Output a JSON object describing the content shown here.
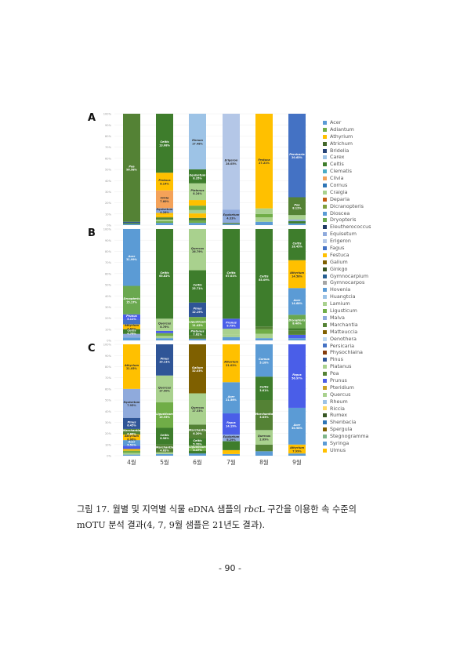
{
  "chart_data": {
    "type": "bar",
    "stacked": true,
    "percent_stacked": true,
    "x_categories": [
      "4월",
      "5월",
      "6월",
      "7월",
      "8월",
      "9월"
    ],
    "y_ticks": [
      "0%",
      "10%",
      "20%",
      "30%",
      "40%",
      "50%",
      "60%",
      "70%",
      "80%",
      "90%",
      "100%"
    ],
    "ylim": [
      0,
      100
    ],
    "legend_position": "right",
    "legend": [
      "Acer",
      "Adiantum",
      "Athyrium",
      "Atrichum",
      "Bridelia",
      "Carex",
      "Celtis",
      "Clematis",
      "Clivia",
      "Cornus",
      "Craigia",
      "Deparia",
      "Dicranopteris",
      "Dioscea",
      "Dryopteris",
      "Eleutherococcus",
      "Equisetum",
      "Erigeron",
      "Fagus",
      "Festuca",
      "Galium",
      "Ginkgo",
      "Gymnocarpium",
      "Gymnocarpos",
      "Hovenia",
      "Huangtcia",
      "Lamium",
      "Ligusticum",
      "Malva",
      "Marchantia",
      "Matteuccia",
      "Oenothera",
      "Persicaria",
      "Physochlaina",
      "Pinus",
      "Platanus",
      "Poa",
      "Prunus",
      "Pteridium",
      "Quercus",
      "Rheum",
      "Riccia",
      "Rumex",
      "Shenbacia",
      "Spergula",
      "Stegnogramma",
      "Syringa",
      "Ulmus"
    ],
    "palette": [
      "#5b9bd5",
      "#70ad47",
      "#ffc000",
      "#43682b",
      "#264478",
      "#9dc3e6",
      "#3e7d2c",
      "#4bacc6",
      "#f4a259",
      "#2e75b6",
      "#a9d18e",
      "#c55a11",
      "#7f9f3f",
      "#5a9bd5",
      "#6aa84f",
      "#1f3864",
      "#8faadc",
      "#b4c7e7",
      "#4472c4",
      "#ffc000",
      "#7f6000",
      "#375623",
      "#255e91",
      "#a5a5a5",
      "#5b9bd5",
      "#9dc3e6",
      "#a9d18e",
      "#70ad47",
      "#8ea9db",
      "#548235",
      "#806000",
      "#bdd7ee",
      "#4472c4",
      "#843c0c",
      "#2f5597",
      "#a9d18e",
      "#548235",
      "#4a5ee8",
      "#c9a227",
      "#a9d18e",
      "#9dc3e6",
      "#ffd966",
      "#375623",
      "#2e75b6",
      "#806000",
      "#7fb58a",
      "#5b9bd5",
      "#ffc000"
    ],
    "panels": [
      {
        "label": "A",
        "bars": [
          [
            {
              "genus": "Acer",
              "v": 1.0
            },
            {
              "genus": "Celtis",
              "v": 1.0
            },
            {
              "genus": "Pinus",
              "v": 1.0
            },
            {
              "genus": "Poa",
              "v": 97.0,
              "label": "Poa",
              "pct": "96.98%"
            }
          ],
          [
            {
              "genus": "Acer",
              "v": 2.0
            },
            {
              "genus": "Ligusticum",
              "v": 1.5
            },
            {
              "genus": "Quercus",
              "v": 1.5
            },
            {
              "genus": "Marchantia",
              "v": 2.0
            },
            {
              "genus": "Festuca",
              "v": 2.0
            },
            {
              "genus": "Athyrium",
              "v": 2.0
            },
            {
              "genus": "Equisetum",
              "v": 4.3,
              "label": "Equisetum",
              "pct": "4.28%"
            },
            {
              "genus": "Clivia",
              "v": 16.0,
              "label": "Clivia",
              "pct": "7.60%"
            },
            {
              "genus": "Festuca",
              "v": 16.0,
              "label": "Festuca",
              "pct": "8.14%"
            },
            {
              "genus": "Celtis",
              "v": 53.2,
              "label": "Celtis",
              "pct": "13.08%"
            }
          ],
          [
            {
              "genus": "Acer",
              "v": 2.0
            },
            {
              "genus": "Ligusticum",
              "v": 2.0
            },
            {
              "genus": "Marchantia",
              "v": 2.5
            },
            {
              "genus": "Festuca",
              "v": 4.0
            },
            {
              "genus": "Quercus",
              "v": 3.0
            },
            {
              "genus": "Ligusticum",
              "v": 4.0,
              "label": "Ligusticum",
              "pct": "3.30%"
            },
            {
              "genus": "Festuca",
              "v": 5.0
            },
            {
              "genus": "Platanus",
              "v": 15.0,
              "label": "Platanus",
              "pct": "8.24%"
            },
            {
              "genus": "Celtis",
              "v": 12.5,
              "label": "Equisetum",
              "pct": "8.35%"
            },
            {
              "genus": "Rheum",
              "v": 50.0,
              "label": "Rheum",
              "pct": "17.48%"
            }
          ],
          [
            {
              "genus": "Acer",
              "v": 1.0
            },
            {
              "genus": "Marchantia",
              "v": 1.0
            },
            {
              "genus": "Equisetum",
              "v": 12.0,
              "label": "Equisetum",
              "pct": "4.33%"
            },
            {
              "genus": "Erigeron",
              "v": 86.0,
              "label": "Erigeron",
              "pct": "28.05%"
            }
          ],
          [
            {
              "genus": "Acer",
              "v": 3.0
            },
            {
              "genus": "Quercus",
              "v": 4.0
            },
            {
              "genus": "Ligusticum",
              "v": 3.0
            },
            {
              "genus": "Quercus",
              "v": 5.0
            },
            {
              "genus": "Festuca",
              "v": 85.0,
              "label": "Festuca",
              "pct": "27.21%"
            }
          ],
          [
            {
              "genus": "Acer",
              "v": 1.5
            },
            {
              "genus": "Celtis",
              "v": 2.0
            },
            {
              "genus": "Equisetum",
              "v": 1.5
            },
            {
              "genus": "Platanus",
              "v": 4.0
            },
            {
              "genus": "Poa",
              "v": 16.0,
              "label": "Poa",
              "pct": "8.12%"
            },
            {
              "genus": "Persicaria",
              "v": 75.0,
              "label": "Persicaria",
              "pct": "20.65%"
            }
          ]
        ]
      },
      {
        "label": "B",
        "bars": [
          [
            {
              "genus": "Acer",
              "v": 2.5
            },
            {
              "genus": "Equisetum",
              "v": 3.0
            },
            {
              "genus": "Celtis",
              "v": 4.0,
              "label": "Celtis",
              "pct": "4.76%"
            },
            {
              "genus": "Athyrium",
              "v": 4.0,
              "label": "Athyrium",
              "pct": "4.82%"
            },
            {
              "genus": "Persicaria",
              "v": 4.0
            },
            {
              "genus": "Prunus",
              "v": 4.5,
              "label": "Prunus",
              "pct": "5.11%"
            },
            {
              "genus": "Dryopteris",
              "v": 24.0,
              "label": "Dryopteris",
              "pct": "15.17%"
            },
            {
              "genus": "Acer",
              "v": 48.0,
              "label": "Acer",
              "pct": "31.99%"
            }
          ],
          [
            {
              "genus": "Acer",
              "v": 2.0
            },
            {
              "genus": "Platanus",
              "v": 2.0
            },
            {
              "genus": "Ligusticum",
              "v": 2.5
            },
            {
              "genus": "Prunus",
              "v": 2.0
            },
            {
              "genus": "Quercus",
              "v": 11.0,
              "label": "Quercus",
              "pct": "8.76%"
            },
            {
              "genus": "Celtis",
              "v": 80.5,
              "label": "Celtis",
              "pct": "63.82%"
            }
          ],
          [
            {
              "genus": "Acer",
              "v": 1.5
            },
            {
              "genus": "Marchantia",
              "v": 3.0,
              "label": "Marchantia",
              "pct": "4.70%"
            },
            {
              "genus": "Celtis",
              "v": 5.5,
              "label": "Platanus",
              "pct": "7.62%"
            },
            {
              "genus": "Ligusticum",
              "v": 11.0,
              "label": "Ligusticum",
              "pct": "11.42%"
            },
            {
              "genus": "Pinus",
              "v": 13.0,
              "label": "Pinus",
              "pct": "12.19%"
            },
            {
              "genus": "Celtis",
              "v": 29.0,
              "label": "Celtis",
              "pct": "25.71%"
            },
            {
              "genus": "Quercus",
              "v": 37.0,
              "label": "Quercus",
              "pct": "26.79%"
            }
          ],
          [
            {
              "genus": "Acer",
              "v": 3.0
            },
            {
              "genus": "Quercus",
              "v": 2.0
            },
            {
              "genus": "Platanus",
              "v": 5.5
            },
            {
              "genus": "Prunus",
              "v": 9.0,
              "label": "Prunus",
              "pct": "9.79%"
            },
            {
              "genus": "Celtis",
              "v": 80.5,
              "label": "Celtis",
              "pct": "67.01%"
            }
          ],
          [
            {
              "genus": "Acer",
              "v": 2.0
            },
            {
              "genus": "Platanus",
              "v": 4.0,
              "label": "Platanus",
              "pct": "6.08%"
            },
            {
              "genus": "Ligusticum",
              "v": 4.0,
              "label": "Ligusticum",
              "pct": "3.98%"
            },
            {
              "genus": "Marchantia",
              "v": 2.5,
              "label": "Marchantia",
              "pct": "3.83%"
            },
            {
              "genus": "Celtis",
              "v": 87.5,
              "label": "Celtis",
              "pct": "85.09%"
            }
          ],
          [
            {
              "genus": "Acer",
              "v": 2.0
            },
            {
              "genus": "Prunus",
              "v": 3.0
            },
            {
              "genus": "Poa",
              "v": 4.0
            },
            {
              "genus": "Celtis",
              "v": 2.0
            },
            {
              "genus": "Dryopteris",
              "v": 12.0,
              "label": "Dryopteris",
              "pct": "8.46%"
            },
            {
              "genus": "Acer",
              "v": 24.0,
              "label": "Acer",
              "pct": "14.68%"
            },
            {
              "genus": "Athyrium",
              "v": 25.0,
              "label": "Athyrium",
              "pct": "14.58%"
            },
            {
              "genus": "Celtis",
              "v": 28.0,
              "label": "Celtis",
              "pct": "18.45%"
            }
          ]
        ]
      },
      {
        "label": "C",
        "bars": [
          [
            {
              "genus": "Acer",
              "v": 1.0
            },
            {
              "genus": "Platanus",
              "v": 1.5
            },
            {
              "genus": "Ligusticum",
              "v": 2.0
            },
            {
              "genus": "Festuca",
              "v": 1.5
            },
            {
              "genus": "Prunus",
              "v": 3.0
            },
            {
              "genus": "Acer",
              "v": 5.0,
              "label": "Acer",
              "pct": "5.51%"
            },
            {
              "genus": "Athyrium",
              "v": 5.0,
              "label": "Athyrium",
              "pct": "8.06%"
            },
            {
              "genus": "Marchantia",
              "v": 5.0,
              "label": "Marchantia",
              "pct": "6.66%"
            },
            {
              "genus": "Pinus",
              "v": 10.0,
              "label": "Pinus",
              "pct": "6.45%"
            },
            {
              "genus": "Equisetum",
              "v": 26.0,
              "label": "Equisetum",
              "pct": "7.95%"
            },
            {
              "genus": "Athyrium",
              "v": 40.0,
              "label": "Athyrium",
              "pct": "21.05%"
            }
          ],
          [
            {
              "genus": "Acer",
              "v": 1.5
            },
            {
              "genus": "Quercus",
              "v": 1.5
            },
            {
              "genus": "Marchantia",
              "v": 7.0,
              "label": "Marchantia",
              "pct": "4.63%"
            },
            {
              "genus": "Celtis",
              "v": 15.0,
              "label": "Celtis",
              "pct": "8.98%"
            },
            {
              "genus": "Ligusticum",
              "v": 23.0,
              "label": "Ligusticum",
              "pct": "15.95%"
            },
            {
              "genus": "Quercus",
              "v": 24.0,
              "label": "Quercus",
              "pct": "17.90%"
            },
            {
              "genus": "Pinus",
              "v": 28.0,
              "label": "Pinus",
              "pct": "19.11%"
            }
          ],
          [
            {
              "genus": "Acer",
              "v": 2.0
            },
            {
              "genus": "Celtis",
              "v": 2.5
            },
            {
              "genus": "Ligusticum",
              "v": 4.5,
              "label": "Ligusticum",
              "pct": "3.47%"
            },
            {
              "genus": "Celtis",
              "v": 6.5,
              "label": "Celtis",
              "pct": "5.70%"
            },
            {
              "genus": "Marchantia",
              "v": 12.5,
              "label": "Marchantia",
              "pct": "6.20%"
            },
            {
              "genus": "Quercus",
              "v": 28.0,
              "label": "Quercus",
              "pct": "17.33%"
            },
            {
              "genus": "Galium",
              "v": 44.0,
              "label": "Galium",
              "pct": "32.03%"
            }
          ],
          [
            {
              "genus": "Acer",
              "v": 1.5
            },
            {
              "genus": "Festuca",
              "v": 3.5
            },
            {
              "genus": "Celtis",
              "v": 8.0
            },
            {
              "genus": "Equisetum",
              "v": 6.0,
              "label": "Equisetum",
              "pct": "6.29%"
            },
            {
              "genus": "Prunus",
              "v": 19.0,
              "label": "Fagus",
              "pct": "14.19%"
            },
            {
              "genus": "Acer",
              "v": 28.0,
              "label": "Acer",
              "pct": "21.56%"
            },
            {
              "genus": "Athyrium",
              "v": 34.0,
              "label": "Athyrium",
              "pct": "21.02%"
            }
          ],
          [
            {
              "genus": "Acer",
              "v": 4.0
            },
            {
              "genus": "Marchantia",
              "v": 6.0
            },
            {
              "genus": "Quercus",
              "v": 13.0,
              "label": "Quercus",
              "pct": "2.69%"
            },
            {
              "genus": "Marchantia",
              "v": 27.0,
              "label": "Marchantia",
              "pct": "3.83%"
            },
            {
              "genus": "Celtis",
              "v": 21.0,
              "label": "Celtis",
              "pct": "3.61%"
            },
            {
              "genus": "Acer",
              "v": 29.0,
              "label": "Cornus",
              "pct": "5.18%"
            }
          ],
          [
            {
              "genus": "Acer",
              "v": 2.0
            },
            {
              "genus": "Athyrium",
              "v": 8.0,
              "label": "Athyrium",
              "pct": "7.99%"
            },
            {
              "genus": "Acer",
              "v": 33.0,
              "label": "Acer",
              "pct": "30.98%"
            },
            {
              "genus": "Prunus",
              "v": 57.0,
              "label": "Fagus",
              "pct": "56.97%"
            }
          ]
        ]
      }
    ]
  },
  "caption": {
    "line1_pre": "그림 17. 월별 및 지역별 식물 eDNA 샘플의 ",
    "line1_italic": "rbc",
    "line1_post": "L 구간을 이용한 속 수준의",
    "line2": "mOTU 분석 결과(4, 7, 9월 샘플은 21년도 결과)."
  },
  "page_number": "- 90 -"
}
